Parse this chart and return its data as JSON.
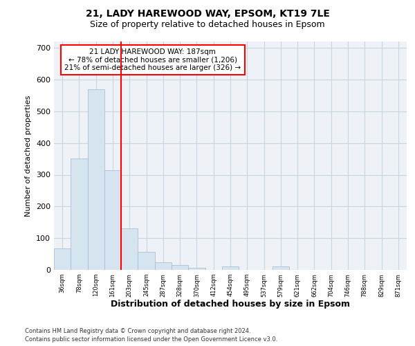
{
  "title_line1": "21, LADY HAREWOOD WAY, EPSOM, KT19 7LE",
  "title_line2": "Size of property relative to detached houses in Epsom",
  "xlabel": "Distribution of detached houses by size in Epsom",
  "ylabel": "Number of detached properties",
  "bar_labels": [
    "36sqm",
    "78sqm",
    "120sqm",
    "161sqm",
    "203sqm",
    "245sqm",
    "287sqm",
    "328sqm",
    "370sqm",
    "412sqm",
    "454sqm",
    "495sqm",
    "537sqm",
    "579sqm",
    "621sqm",
    "662sqm",
    "704sqm",
    "746sqm",
    "788sqm",
    "829sqm",
    "871sqm"
  ],
  "bar_values": [
    68,
    352,
    570,
    314,
    130,
    57,
    25,
    15,
    7,
    0,
    10,
    0,
    0,
    10,
    0,
    0,
    0,
    0,
    0,
    0,
    0
  ],
  "bar_color": "#d6e4f0",
  "bar_edgecolor": "#a0b8d0",
  "vline_color": "red",
  "vline_x": 3.5,
  "ylim": [
    0,
    720
  ],
  "yticks": [
    0,
    100,
    200,
    300,
    400,
    500,
    600,
    700
  ],
  "annotation_title": "21 LADY HAREWOOD WAY: 187sqm",
  "annotation_line1": "← 78% of detached houses are smaller (1,206)",
  "annotation_line2": "21% of semi-detached houses are larger (326) →",
  "footer_line1": "Contains HM Land Registry data © Crown copyright and database right 2024.",
  "footer_line2": "Contains public sector information licensed under the Open Government Licence v3.0.",
  "bg_color": "#eef2f7",
  "grid_color": "#c8d4e0"
}
